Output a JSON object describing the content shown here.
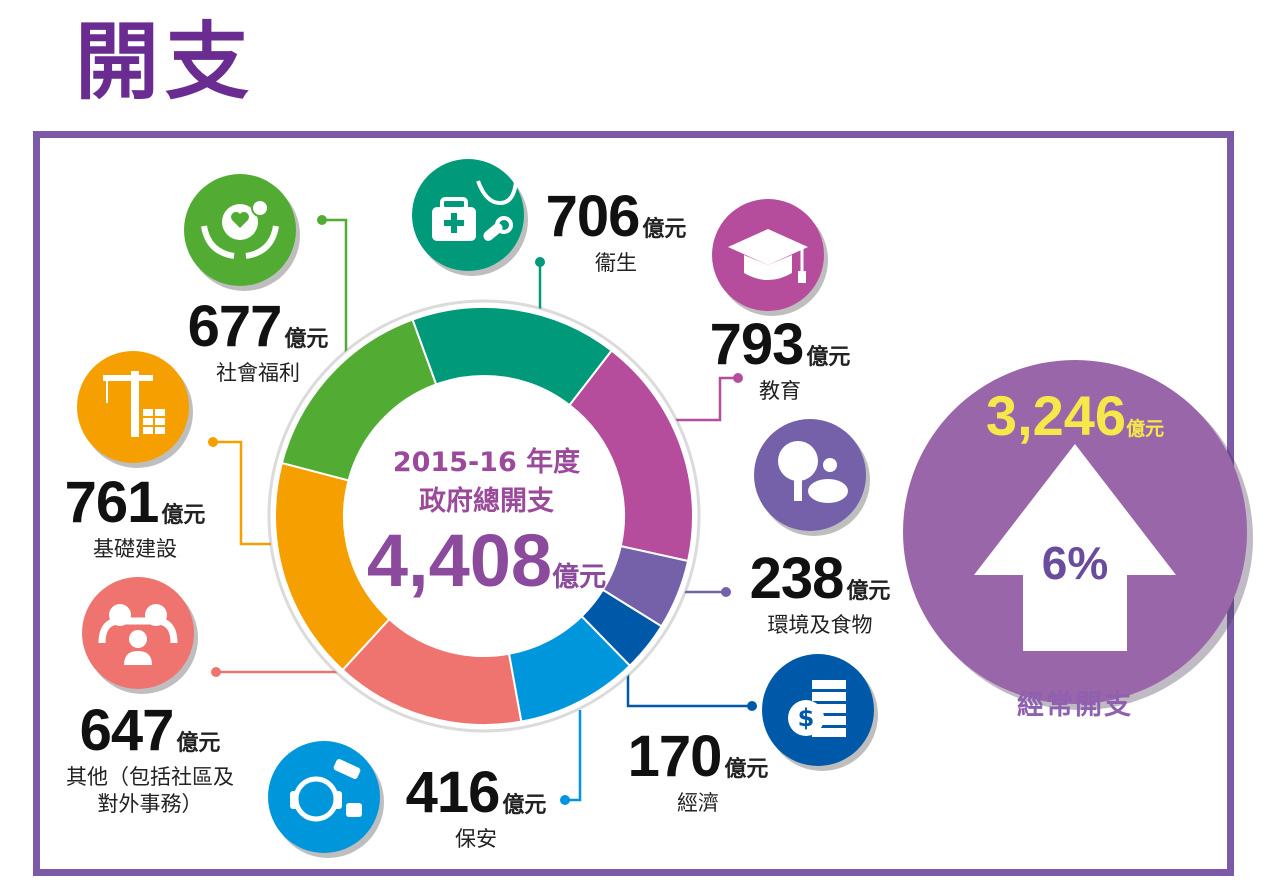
{
  "page": {
    "title": "開支"
  },
  "colors": {
    "accent": "#6a2c91",
    "frame": "#7c5aa8",
    "recurrent_circle": "#9966aa",
    "recurrent_number": "#f6e84a"
  },
  "center": {
    "line1": "2015-16 年度",
    "line2": "政府總開支",
    "total": "4,408",
    "unit": "億元"
  },
  "recurrent": {
    "value": "3,246",
    "unit": "億元",
    "percent": "6%",
    "label": "經常開支",
    "icon": "up-arrow-icon"
  },
  "chart_data": {
    "type": "pie",
    "donut": true,
    "unit": "億元",
    "slices": [
      {
        "label": "衞生",
        "value": 706,
        "color": "#00997a",
        "icon": "medical-kit-icon"
      },
      {
        "label": "教育",
        "value": 793,
        "color": "#b54d9c",
        "icon": "graduation-cap-icon"
      },
      {
        "label": "環境及食物",
        "value": 238,
        "color": "#7461aa",
        "icon": "tree-pig-icon"
      },
      {
        "label": "經濟",
        "value": 170,
        "color": "#0059a8",
        "icon": "money-stack-icon"
      },
      {
        "label": "保安",
        "value": 416,
        "color": "#0096dc",
        "icon": "security-guard-icon"
      },
      {
        "label": "其他（包括社區及對外事務）",
        "value": 647,
        "color": "#ef7470",
        "icon": "family-icon"
      },
      {
        "label": "基礎建設",
        "value": 761,
        "color": "#f5a000",
        "icon": "crane-icon"
      },
      {
        "label": "社會福利",
        "value": 677,
        "color": "#52ac34",
        "icon": "caring-hands-icon"
      }
    ]
  },
  "labels": [
    {
      "value": "706",
      "unit": "億元",
      "category": "衞生"
    },
    {
      "value": "793",
      "unit": "億元",
      "category": "教育"
    },
    {
      "value": "238",
      "unit": "億元",
      "category": "環境及食物"
    },
    {
      "value": "170",
      "unit": "億元",
      "category": "經濟"
    },
    {
      "value": "416",
      "unit": "億元",
      "category": "保安"
    },
    {
      "value": "647",
      "unit": "億元",
      "category_line1": "其他（包括社區及",
      "category_line2": "對外事務）"
    },
    {
      "value": "761",
      "unit": "億元",
      "category": "基礎建設"
    },
    {
      "value": "677",
      "unit": "億元",
      "category": "社會福利"
    }
  ]
}
